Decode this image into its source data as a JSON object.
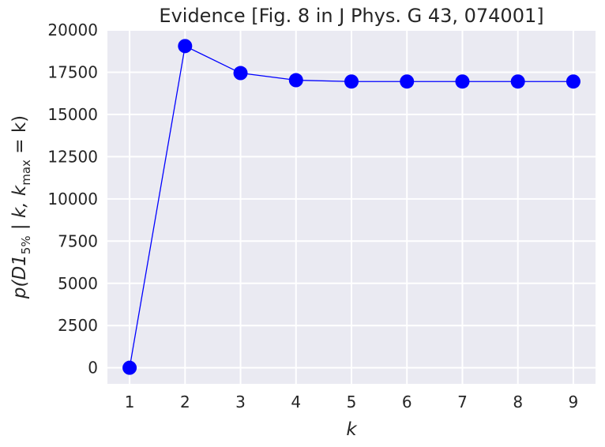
{
  "chart_data": {
    "type": "line",
    "title": "Evidence [Fig. 8 in J Phys. G 43, 074001]",
    "xlabel": "k",
    "ylabel": {
      "prefix": "p(D1",
      "sub1": "5%",
      "middle": " | k, k",
      "sub2": "max",
      "suffix": " = k)"
    },
    "x": [
      1,
      2,
      3,
      4,
      5,
      6,
      7,
      8,
      9
    ],
    "series": [
      {
        "values": [
          0,
          19050,
          17450,
          17030,
          16950,
          16950,
          16950,
          16950,
          16950
        ],
        "color": "#0000ff"
      }
    ],
    "xlim": [
      0.6,
      9.4
    ],
    "ylim": [
      -950,
      20000
    ],
    "xticks": [
      1,
      2,
      3,
      4,
      5,
      6,
      7,
      8,
      9
    ],
    "xtick_labels": [
      "1",
      "2",
      "3",
      "4",
      "5",
      "6",
      "7",
      "8",
      "9"
    ],
    "yticks": [
      0,
      2500,
      5000,
      7500,
      10000,
      12500,
      15000,
      17500,
      20000
    ],
    "ytick_labels": [
      "0",
      "2500",
      "5000",
      "7500",
      "10000",
      "12500",
      "15000",
      "17500",
      "20000"
    ],
    "grid": true,
    "background": "#eaeaf2",
    "grid_color": "#ffffff",
    "marker": "circle"
  }
}
